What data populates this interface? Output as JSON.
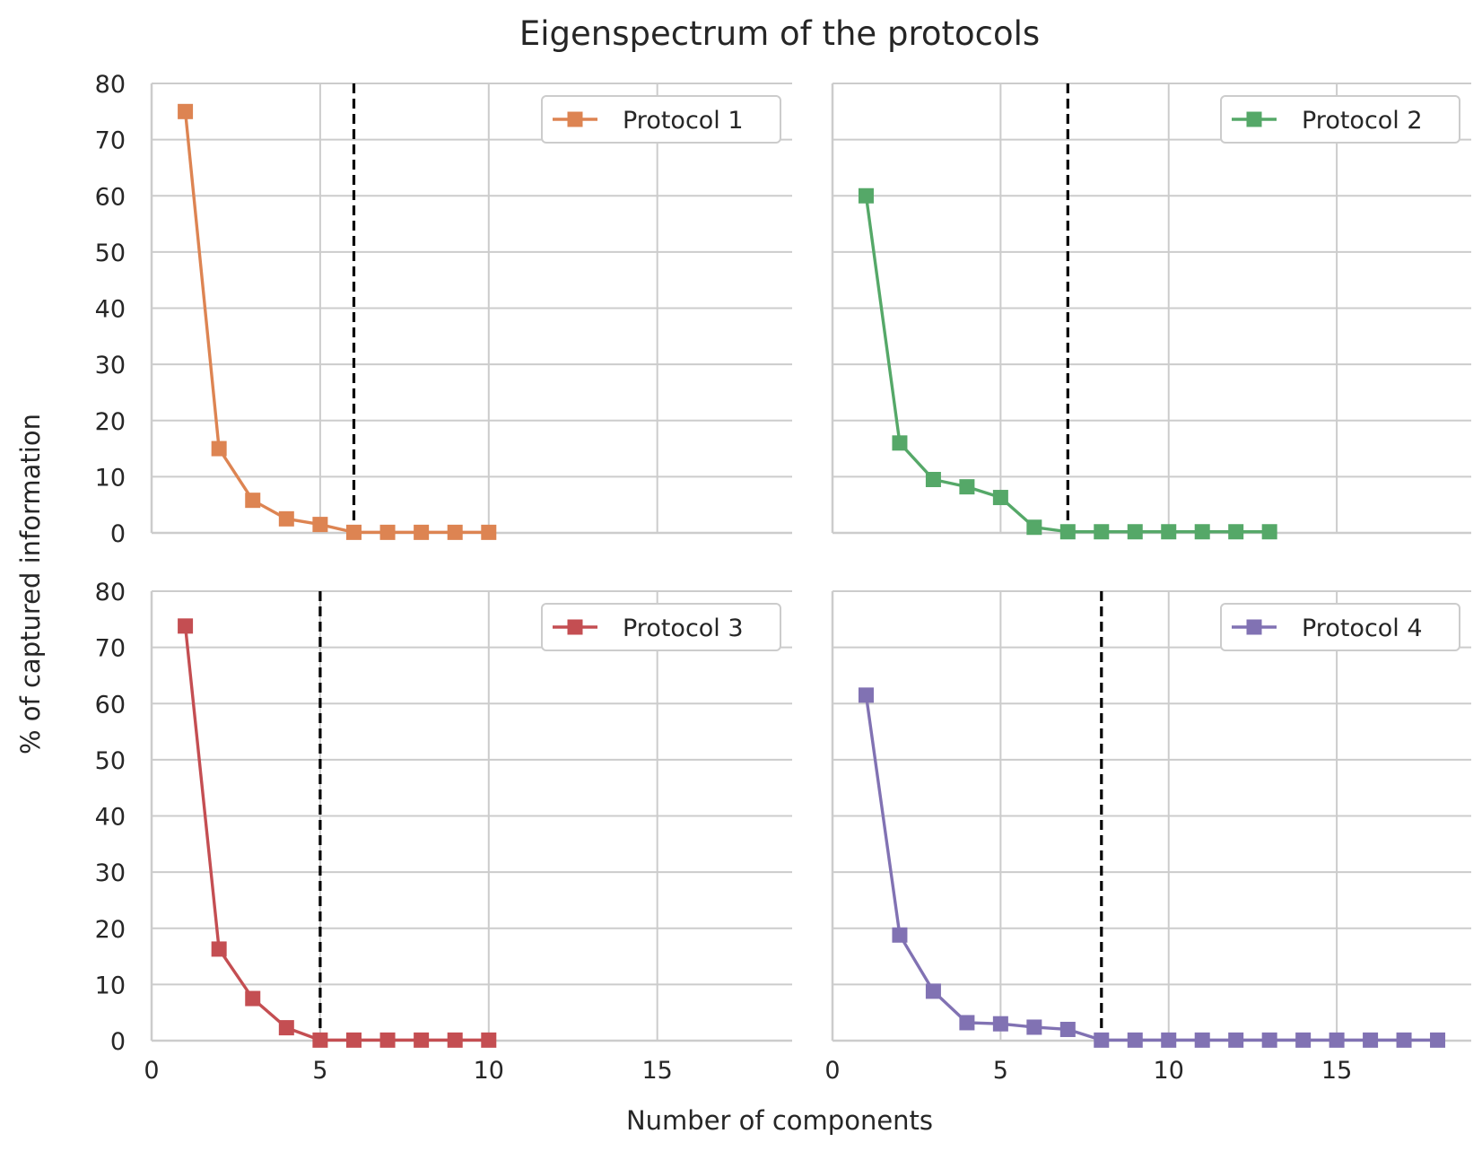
{
  "chart_data": {
    "type": "line",
    "title": "Eigenspectrum of the protocols",
    "xlabel": "Number of components",
    "ylabel": "% of captured information",
    "xlim": [
      0,
      19
    ],
    "ylim": [
      0,
      80
    ],
    "xticks": [
      0,
      5,
      10,
      15
    ],
    "yticks": [
      0,
      10,
      20,
      30,
      40,
      50,
      60,
      70,
      80
    ],
    "grid": true,
    "legend_position": "top-right",
    "marker": "square",
    "panels": [
      {
        "name": "Protocol 1",
        "color": "#dd8452",
        "x": [
          1,
          2,
          3,
          4,
          5,
          6,
          7,
          8,
          9,
          10
        ],
        "values": [
          75,
          15,
          5.8,
          2.5,
          1.5,
          0.1,
          0.1,
          0.1,
          0.1,
          0.1
        ],
        "threshold": 6
      },
      {
        "name": "Protocol 2",
        "color": "#55a868",
        "x": [
          1,
          2,
          3,
          4,
          5,
          6,
          7,
          8,
          9,
          10,
          11,
          12,
          13
        ],
        "values": [
          60,
          16,
          9.5,
          8.2,
          6.3,
          1,
          0.2,
          0.2,
          0.2,
          0.2,
          0.2,
          0.2,
          0.2
        ],
        "threshold": 7
      },
      {
        "name": "Protocol 3",
        "color": "#c44e52",
        "x": [
          1,
          2,
          3,
          4,
          5,
          6,
          7,
          8,
          9,
          10
        ],
        "values": [
          73.8,
          16.3,
          7.5,
          2.3,
          0.1,
          0.1,
          0.1,
          0.1,
          0.1,
          0.1
        ],
        "threshold": 5
      },
      {
        "name": "Protocol 4",
        "color": "#8172b3",
        "x": [
          1,
          2,
          3,
          4,
          5,
          6,
          7,
          8,
          9,
          10,
          11,
          12,
          13,
          14,
          15,
          16,
          17,
          18
        ],
        "values": [
          61.5,
          18.8,
          8.8,
          3.2,
          3,
          2.4,
          2,
          0.1,
          0.1,
          0.1,
          0.1,
          0.1,
          0.1,
          0.1,
          0.1,
          0.1,
          0.1,
          0.1
        ],
        "threshold": 8
      }
    ]
  }
}
